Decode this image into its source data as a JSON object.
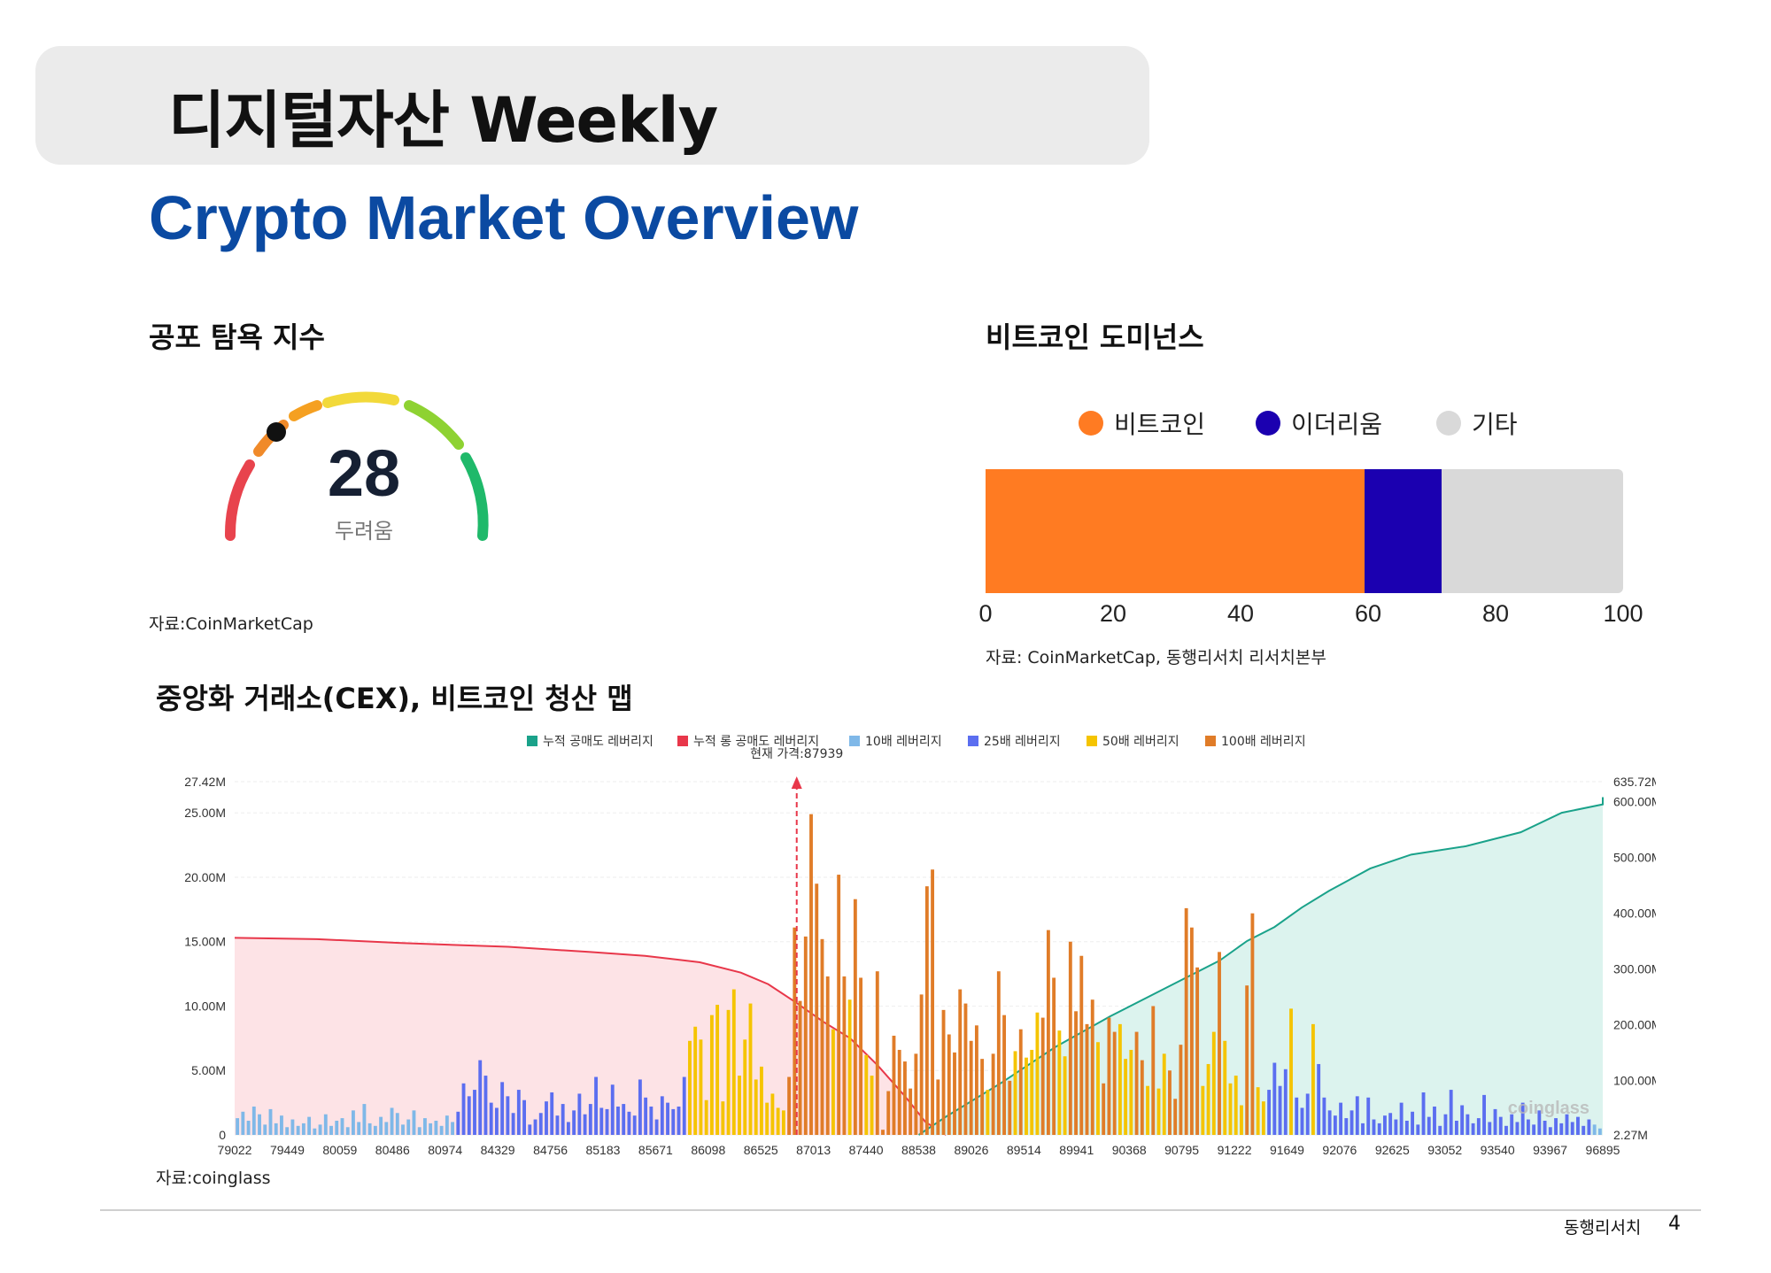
{
  "header": {
    "title": "디지털자산 Weekly",
    "subtitle": "Crypto Market Overview"
  },
  "fear_greed": {
    "title": "공포 탐욕 지수",
    "value": "28",
    "label": "두려움",
    "source": "자료:CoinMarketCap",
    "colors": [
      "#e8434d",
      "#f08a2a",
      "#f5c518",
      "#f2d93a",
      "#8ed232",
      "#1fb96a"
    ]
  },
  "dominance": {
    "title": "비트코인 도미넌스",
    "legend": [
      {
        "label": "비트코인",
        "color": "#ff7b22"
      },
      {
        "label": "이더리움",
        "color": "#1b00b0"
      },
      {
        "label": "기타",
        "color": "#d9d9d9"
      }
    ],
    "axis_ticks": [
      "0",
      "20",
      "40",
      "60",
      "80",
      "100"
    ],
    "source": "자료: CoinMarketCap, 동행리서치 리서치본부"
  },
  "liquidation": {
    "title": "중앙화 거래소(CEX), 비트코인 청산 맵",
    "source": "자료:coinglass",
    "legend": [
      {
        "label": "누적 공매도 레버리지",
        "color": "#1aa28a"
      },
      {
        "label": "누적 롱 공매도 레버리지",
        "color": "#e8374a"
      },
      {
        "label": "10배 레버리지",
        "color": "#7fb8e8"
      },
      {
        "label": "25배 레버리지",
        "color": "#5b6ef0"
      },
      {
        "label": "50배 레버리지",
        "color": "#f5c400"
      },
      {
        "label": "100배 레버리지",
        "color": "#e07c28"
      }
    ],
    "current_price_label": "현재 가격:87939",
    "left_ticks": [
      "27.42M",
      "25.00M",
      "20.00M",
      "15.00M",
      "10.00M",
      "5.00M",
      "0"
    ],
    "right_ticks": [
      "635.72M",
      "600.00M",
      "500.00M",
      "400.00M",
      "300.00M",
      "200.00M",
      "100.00M",
      "2.27M"
    ],
    "x_ticks": [
      "79022",
      "79449",
      "80059",
      "80486",
      "80974",
      "84329",
      "84756",
      "85183",
      "85671",
      "86098",
      "86525",
      "87013",
      "87440",
      "88538",
      "89026",
      "89514",
      "89941",
      "90368",
      "90795",
      "91222",
      "91649",
      "92076",
      "92625",
      "93052",
      "93540",
      "93967",
      "96895"
    ],
    "watermark": "coinglass"
  },
  "chart_data": [
    {
      "type": "bar",
      "title": "비트코인 도미넌스",
      "orientation": "horizontal",
      "stacked": true,
      "series": [
        {
          "name": "비트코인",
          "values": [
            59.5
          ]
        },
        {
          "name": "이더리움",
          "values": [
            12.0
          ]
        },
        {
          "name": "기타",
          "values": [
            28.5
          ]
        }
      ],
      "xlim": [
        0,
        100
      ],
      "x_ticks": [
        0,
        20,
        40,
        60,
        80,
        100
      ],
      "legend": "top"
    },
    {
      "type": "bar",
      "title": "중앙화 거래소(CEX), 비트코인 청산 맵",
      "x_categories": [
        "79022",
        "79449",
        "80059",
        "80486",
        "80974",
        "84329",
        "84756",
        "85183",
        "85671",
        "86098",
        "86525",
        "87013",
        "87440",
        "88538",
        "89026",
        "89514",
        "89941",
        "90368",
        "90795",
        "91222",
        "91649",
        "92076",
        "92625",
        "93052",
        "93540",
        "93967",
        "96895"
      ],
      "current_price": 87939,
      "ylim_left": [
        0,
        27.42
      ],
      "ylim_right": [
        2.27,
        635.72
      ],
      "legend": "top",
      "bars": [
        {
          "h": 1.3,
          "c": 0
        },
        {
          "h": 1.8,
          "c": 0
        },
        {
          "h": 1.1,
          "c": 0
        },
        {
          "h": 2.2,
          "c": 0
        },
        {
          "h": 1.6,
          "c": 0
        },
        {
          "h": 0.8,
          "c": 0
        },
        {
          "h": 2.0,
          "c": 0
        },
        {
          "h": 0.9,
          "c": 0
        },
        {
          "h": 1.5,
          "c": 0
        },
        {
          "h": 0.6,
          "c": 0
        },
        {
          "h": 1.2,
          "c": 0
        },
        {
          "h": 0.7,
          "c": 0
        },
        {
          "h": 0.9,
          "c": 0
        },
        {
          "h": 1.4,
          "c": 0
        },
        {
          "h": 0.5,
          "c": 0
        },
        {
          "h": 0.8,
          "c": 0
        },
        {
          "h": 1.6,
          "c": 0
        },
        {
          "h": 0.7,
          "c": 0
        },
        {
          "h": 1.1,
          "c": 0
        },
        {
          "h": 1.3,
          "c": 0
        },
        {
          "h": 0.6,
          "c": 0
        },
        {
          "h": 1.9,
          "c": 0
        },
        {
          "h": 1.0,
          "c": 0
        },
        {
          "h": 2.4,
          "c": 0
        },
        {
          "h": 0.9,
          "c": 0
        },
        {
          "h": 0.7,
          "c": 0
        },
        {
          "h": 1.4,
          "c": 0
        },
        {
          "h": 1.0,
          "c": 0
        },
        {
          "h": 2.1,
          "c": 0
        },
        {
          "h": 1.7,
          "c": 0
        },
        {
          "h": 0.8,
          "c": 0
        },
        {
          "h": 1.2,
          "c": 0
        },
        {
          "h": 1.9,
          "c": 0
        },
        {
          "h": 0.6,
          "c": 0
        },
        {
          "h": 1.3,
          "c": 0
        },
        {
          "h": 0.9,
          "c": 0
        },
        {
          "h": 1.1,
          "c": 0
        },
        {
          "h": 0.7,
          "c": 0
        },
        {
          "h": 1.5,
          "c": 0
        },
        {
          "h": 1.0,
          "c": 0
        },
        {
          "h": 1.8,
          "c": 1
        },
        {
          "h": 4.0,
          "c": 1
        },
        {
          "h": 3.0,
          "c": 1
        },
        {
          "h": 3.5,
          "c": 1
        },
        {
          "h": 5.8,
          "c": 1
        },
        {
          "h": 4.6,
          "c": 1
        },
        {
          "h": 2.5,
          "c": 1
        },
        {
          "h": 2.1,
          "c": 1
        },
        {
          "h": 4.1,
          "c": 1
        },
        {
          "h": 3.0,
          "c": 1
        },
        {
          "h": 1.7,
          "c": 1
        },
        {
          "h": 3.5,
          "c": 1
        },
        {
          "h": 2.7,
          "c": 1
        },
        {
          "h": 0.8,
          "c": 1
        },
        {
          "h": 1.2,
          "c": 1
        },
        {
          "h": 1.7,
          "c": 1
        },
        {
          "h": 2.6,
          "c": 1
        },
        {
          "h": 3.3,
          "c": 1
        },
        {
          "h": 1.5,
          "c": 1
        },
        {
          "h": 2.4,
          "c": 1
        },
        {
          "h": 1.0,
          "c": 1
        },
        {
          "h": 1.9,
          "c": 1
        },
        {
          "h": 3.2,
          "c": 1
        },
        {
          "h": 1.6,
          "c": 1
        },
        {
          "h": 2.4,
          "c": 1
        },
        {
          "h": 4.5,
          "c": 1
        },
        {
          "h": 2.1,
          "c": 1
        },
        {
          "h": 2.0,
          "c": 1
        },
        {
          "h": 3.9,
          "c": 1
        },
        {
          "h": 2.2,
          "c": 1
        },
        {
          "h": 2.4,
          "c": 1
        },
        {
          "h": 1.8,
          "c": 1
        },
        {
          "h": 1.5,
          "c": 1
        },
        {
          "h": 4.3,
          "c": 1
        },
        {
          "h": 2.9,
          "c": 1
        },
        {
          "h": 2.2,
          "c": 1
        },
        {
          "h": 1.2,
          "c": 1
        },
        {
          "h": 3.0,
          "c": 1
        },
        {
          "h": 2.5,
          "c": 1
        },
        {
          "h": 2.0,
          "c": 1
        },
        {
          "h": 2.2,
          "c": 1
        },
        {
          "h": 4.5,
          "c": 1
        },
        {
          "h": 7.3,
          "c": 2
        },
        {
          "h": 8.4,
          "c": 2
        },
        {
          "h": 7.4,
          "c": 2
        },
        {
          "h": 2.7,
          "c": 2
        },
        {
          "h": 9.3,
          "c": 2
        },
        {
          "h": 10.1,
          "c": 2
        },
        {
          "h": 2.6,
          "c": 2
        },
        {
          "h": 9.7,
          "c": 2
        },
        {
          "h": 11.3,
          "c": 2
        },
        {
          "h": 4.6,
          "c": 2
        },
        {
          "h": 7.4,
          "c": 2
        },
        {
          "h": 10.2,
          "c": 2
        },
        {
          "h": 4.3,
          "c": 2
        },
        {
          "h": 5.3,
          "c": 2
        },
        {
          "h": 2.5,
          "c": 2
        },
        {
          "h": 3.2,
          "c": 2
        },
        {
          "h": 2.1,
          "c": 2
        },
        {
          "h": 1.9,
          "c": 2
        },
        {
          "h": 4.5,
          "c": 3
        },
        {
          "h": 16.1,
          "c": 3
        },
        {
          "h": 10.4,
          "c": 3
        },
        {
          "h": 15.4,
          "c": 3
        },
        {
          "h": 24.9,
          "c": 3
        },
        {
          "h": 19.5,
          "c": 3
        },
        {
          "h": 15.2,
          "c": 3
        },
        {
          "h": 12.3,
          "c": 3
        },
        {
          "h": 8.2,
          "c": 2
        },
        {
          "h": 20.2,
          "c": 3
        },
        {
          "h": 12.3,
          "c": 3
        },
        {
          "h": 10.5,
          "c": 2
        },
        {
          "h": 18.3,
          "c": 3
        },
        {
          "h": 12.2,
          "c": 3
        },
        {
          "h": 6.2,
          "c": 2
        },
        {
          "h": 4.6,
          "c": 2
        },
        {
          "h": 12.7,
          "c": 3
        },
        {
          "h": 0.4,
          "c": 3
        },
        {
          "h": 3.4,
          "c": 3
        },
        {
          "h": 7.7,
          "c": 3
        },
        {
          "h": 6.6,
          "c": 3
        },
        {
          "h": 5.7,
          "c": 3
        },
        {
          "h": 3.6,
          "c": 3
        },
        {
          "h": 6.3,
          "c": 3
        },
        {
          "h": 10.9,
          "c": 3
        },
        {
          "h": 19.3,
          "c": 3
        },
        {
          "h": 20.6,
          "c": 3
        },
        {
          "h": 4.3,
          "c": 3
        },
        {
          "h": 9.7,
          "c": 3
        },
        {
          "h": 7.8,
          "c": 3
        },
        {
          "h": 6.4,
          "c": 3
        },
        {
          "h": 11.3,
          "c": 3
        },
        {
          "h": 10.2,
          "c": 3
        },
        {
          "h": 7.3,
          "c": 3
        },
        {
          "h": 8.5,
          "c": 3
        },
        {
          "h": 5.9,
          "c": 3
        },
        {
          "h": 3.5,
          "c": 2
        },
        {
          "h": 6.3,
          "c": 3
        },
        {
          "h": 12.7,
          "c": 3
        },
        {
          "h": 9.3,
          "c": 3
        },
        {
          "h": 4.2,
          "c": 3
        },
        {
          "h": 6.5,
          "c": 2
        },
        {
          "h": 8.2,
          "c": 3
        },
        {
          "h": 6.0,
          "c": 2
        },
        {
          "h": 6.6,
          "c": 2
        },
        {
          "h": 9.5,
          "c": 2
        },
        {
          "h": 9.1,
          "c": 3
        },
        {
          "h": 15.9,
          "c": 3
        },
        {
          "h": 12.2,
          "c": 3
        },
        {
          "h": 8.1,
          "c": 2
        },
        {
          "h": 6.1,
          "c": 2
        },
        {
          "h": 15.0,
          "c": 3
        },
        {
          "h": 9.6,
          "c": 3
        },
        {
          "h": 13.9,
          "c": 3
        },
        {
          "h": 8.6,
          "c": 3
        },
        {
          "h": 10.5,
          "c": 3
        },
        {
          "h": 7.2,
          "c": 2
        },
        {
          "h": 4.0,
          "c": 3
        },
        {
          "h": 9.1,
          "c": 3
        },
        {
          "h": 8.0,
          "c": 3
        },
        {
          "h": 8.6,
          "c": 2
        },
        {
          "h": 5.9,
          "c": 2
        },
        {
          "h": 6.6,
          "c": 2
        },
        {
          "h": 8.0,
          "c": 3
        },
        {
          "h": 5.8,
          "c": 3
        },
        {
          "h": 3.8,
          "c": 2
        },
        {
          "h": 10.0,
          "c": 3
        },
        {
          "h": 3.6,
          "c": 2
        },
        {
          "h": 6.3,
          "c": 2
        },
        {
          "h": 5.0,
          "c": 3
        },
        {
          "h": 2.8,
          "c": 3
        },
        {
          "h": 7.0,
          "c": 3
        },
        {
          "h": 17.6,
          "c": 3
        },
        {
          "h": 16.1,
          "c": 3
        },
        {
          "h": 13.0,
          "c": 3
        },
        {
          "h": 3.8,
          "c": 2
        },
        {
          "h": 5.5,
          "c": 2
        },
        {
          "h": 8.0,
          "c": 2
        },
        {
          "h": 14.2,
          "c": 3
        },
        {
          "h": 7.3,
          "c": 2
        },
        {
          "h": 4.0,
          "c": 2
        },
        {
          "h": 4.6,
          "c": 2
        },
        {
          "h": 2.3,
          "c": 2
        },
        {
          "h": 11.6,
          "c": 3
        },
        {
          "h": 17.2,
          "c": 3
        },
        {
          "h": 3.7,
          "c": 2
        },
        {
          "h": 2.6,
          "c": 2
        },
        {
          "h": 3.5,
          "c": 1
        },
        {
          "h": 5.6,
          "c": 1
        },
        {
          "h": 3.8,
          "c": 1
        },
        {
          "h": 5.1,
          "c": 1
        },
        {
          "h": 9.8,
          "c": 2
        },
        {
          "h": 2.9,
          "c": 1
        },
        {
          "h": 2.1,
          "c": 1
        },
        {
          "h": 3.2,
          "c": 1
        },
        {
          "h": 8.6,
          "c": 2
        },
        {
          "h": 5.5,
          "c": 1
        },
        {
          "h": 2.9,
          "c": 1
        },
        {
          "h": 1.9,
          "c": 1
        },
        {
          "h": 1.5,
          "c": 1
        },
        {
          "h": 2.5,
          "c": 1
        },
        {
          "h": 1.3,
          "c": 1
        },
        {
          "h": 1.9,
          "c": 1
        },
        {
          "h": 3.0,
          "c": 1
        },
        {
          "h": 0.9,
          "c": 1
        },
        {
          "h": 2.9,
          "c": 1
        },
        {
          "h": 1.2,
          "c": 1
        },
        {
          "h": 0.9,
          "c": 1
        },
        {
          "h": 1.5,
          "c": 1
        },
        {
          "h": 1.7,
          "c": 1
        },
        {
          "h": 1.2,
          "c": 1
        },
        {
          "h": 2.5,
          "c": 1
        },
        {
          "h": 1.1,
          "c": 1
        },
        {
          "h": 1.8,
          "c": 1
        },
        {
          "h": 0.8,
          "c": 1
        },
        {
          "h": 3.3,
          "c": 1
        },
        {
          "h": 1.4,
          "c": 1
        },
        {
          "h": 2.2,
          "c": 1
        },
        {
          "h": 0.7,
          "c": 1
        },
        {
          "h": 1.6,
          "c": 1
        },
        {
          "h": 3.5,
          "c": 1
        },
        {
          "h": 1.1,
          "c": 1
        },
        {
          "h": 2.3,
          "c": 1
        },
        {
          "h": 1.6,
          "c": 1
        },
        {
          "h": 0.9,
          "c": 1
        },
        {
          "h": 1.3,
          "c": 1
        },
        {
          "h": 3.1,
          "c": 1
        },
        {
          "h": 1.0,
          "c": 1
        },
        {
          "h": 2.0,
          "c": 1
        },
        {
          "h": 1.4,
          "c": 1
        },
        {
          "h": 0.7,
          "c": 1
        },
        {
          "h": 1.6,
          "c": 1
        },
        {
          "h": 1.0,
          "c": 1
        },
        {
          "h": 2.5,
          "c": 1
        },
        {
          "h": 1.2,
          "c": 1
        },
        {
          "h": 0.8,
          "c": 1
        },
        {
          "h": 1.9,
          "c": 1
        },
        {
          "h": 1.1,
          "c": 1
        },
        {
          "h": 0.6,
          "c": 1
        },
        {
          "h": 1.3,
          "c": 1
        },
        {
          "h": 0.9,
          "c": 1
        },
        {
          "h": 1.6,
          "c": 1
        },
        {
          "h": 1.0,
          "c": 1
        },
        {
          "h": 1.4,
          "c": 1
        },
        {
          "h": 0.7,
          "c": 1
        },
        {
          "h": 1.2,
          "c": 1
        },
        {
          "h": 0.8,
          "c": 0
        },
        {
          "h": 0.5,
          "c": 0
        }
      ],
      "long_cumulative": [
        [
          0,
          15.3
        ],
        [
          0.06,
          15.2
        ],
        [
          0.12,
          14.9
        ],
        [
          0.2,
          14.6
        ],
        [
          0.26,
          14.2
        ],
        [
          0.3,
          13.9
        ],
        [
          0.34,
          13.4
        ],
        [
          0.37,
          12.6
        ],
        [
          0.39,
          11.7
        ],
        [
          0.41,
          10.3
        ],
        [
          0.43,
          8.8
        ],
        [
          0.45,
          7.5
        ],
        [
          0.47,
          5.4
        ],
        [
          0.49,
          3.0
        ],
        [
          0.505,
          1.0
        ],
        [
          0.52,
          0.0
        ]
      ],
      "short_cumulative": [
        [
          0.5,
          2.27
        ],
        [
          0.52,
          35
        ],
        [
          0.56,
          95
        ],
        [
          0.6,
          160
        ],
        [
          0.64,
          215
        ],
        [
          0.68,
          265
        ],
        [
          0.72,
          315
        ],
        [
          0.74,
          350
        ],
        [
          0.76,
          375
        ],
        [
          0.78,
          410
        ],
        [
          0.8,
          440
        ],
        [
          0.83,
          480
        ],
        [
          0.86,
          505
        ],
        [
          0.9,
          520
        ],
        [
          0.94,
          545
        ],
        [
          0.97,
          580
        ],
        [
          1.0,
          595
        ],
        [
          1.0,
          608
        ]
      ]
    }
  ]
}
